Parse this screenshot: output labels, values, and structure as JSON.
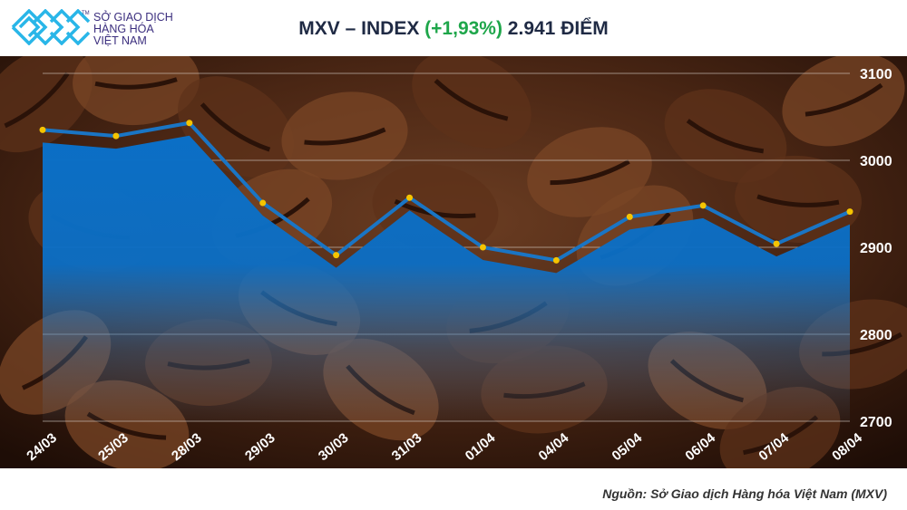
{
  "logo": {
    "lines": [
      "SỞ GIAO DỊCH",
      "HÀNG HÓA",
      "VIỆT NAM"
    ],
    "tm": "TM",
    "color": "#29b6e8"
  },
  "title": {
    "prefix": "MXV – INDEX ",
    "change": "(+1,93%)",
    "suffix": " 2.941 ĐIỂM",
    "change_color": "#1ea64a"
  },
  "source": "Nguồn: Sở Giao dịch Hàng hóa Việt Nam (MXV)",
  "chart_data": {
    "type": "area",
    "title": "MXV – INDEX (+1,93%) 2.941 ĐIỂM",
    "categories": [
      "24/03",
      "25/03",
      "28/03",
      "29/03",
      "30/03",
      "31/03",
      "01/04",
      "04/04",
      "05/04",
      "06/04",
      "07/04",
      "08/04"
    ],
    "values": [
      3035,
      3028,
      3043,
      2951,
      2891,
      2957,
      2900,
      2885,
      2935,
      2948,
      2904,
      2941
    ],
    "ylim": [
      2700,
      3100
    ],
    "yticks": [
      2700,
      2800,
      2900,
      3000,
      3100
    ],
    "grid": true,
    "line_color": "#1a75c4",
    "area_color": "#0b6fc6",
    "marker_color": "#f5c400",
    "xlabel": "",
    "ylabel": ""
  }
}
